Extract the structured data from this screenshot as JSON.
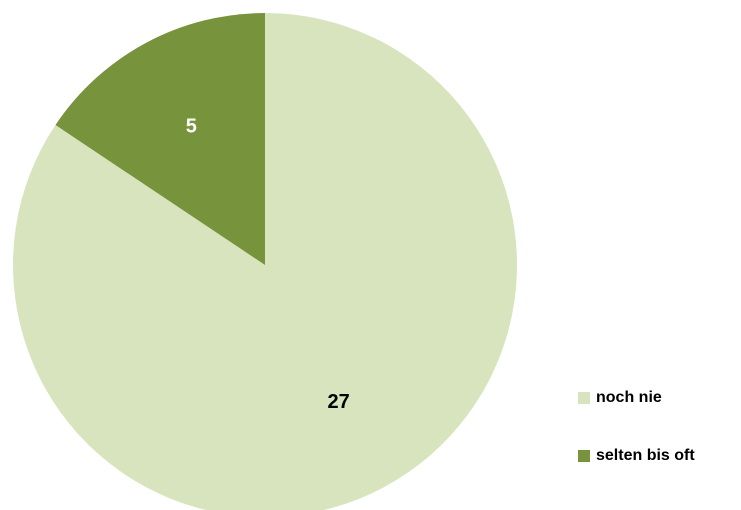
{
  "chart_data": {
    "type": "pie",
    "categories": [
      "noch nie",
      "selten bis oft"
    ],
    "values": [
      27,
      5
    ],
    "colors": [
      "#d7e4bd",
      "#77933c"
    ],
    "label_colors": [
      "#000000",
      "#ffffff"
    ],
    "legend": "right"
  }
}
